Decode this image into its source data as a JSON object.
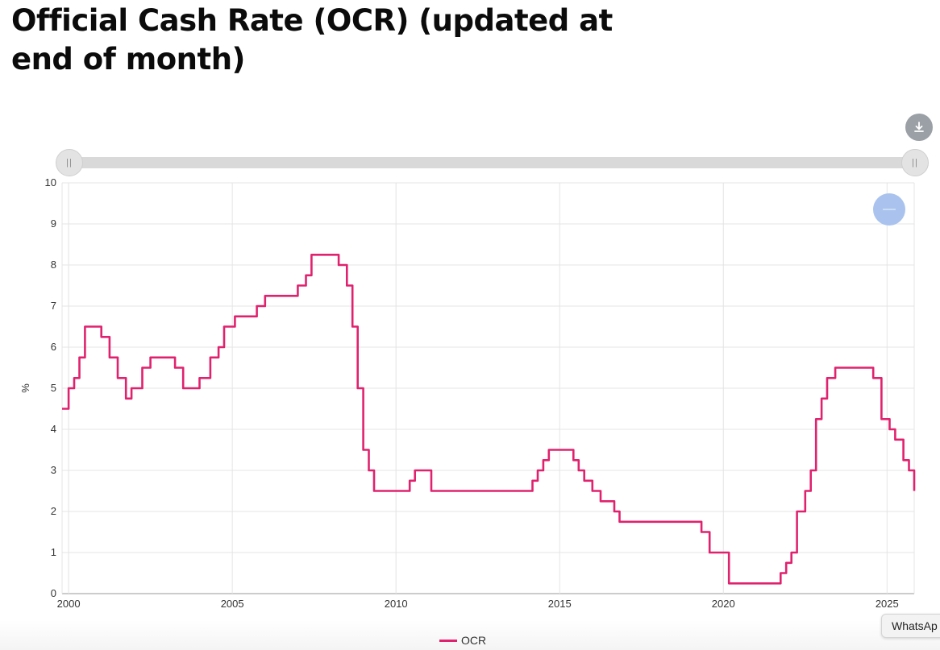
{
  "page": {
    "title": "Official Cash Rate (OCR) (updated at end of month)",
    "tooltip": "WhatsAp",
    "icons": {
      "download": "download-icon",
      "slider_handle": "grip-icon",
      "zoom": "minus-icon"
    },
    "colors": {
      "series": "#e0226e",
      "zoom_button": "#a9c3ee",
      "download_button": "#9aa0a5"
    }
  },
  "chart_data": {
    "type": "line",
    "title": "Official Cash Rate (OCR) (updated at end of month)",
    "xlabel": "",
    "ylabel": "%",
    "xlim": [
      1999.8,
      2025.83
    ],
    "ylim": [
      0,
      10
    ],
    "x_ticks": [
      "2000",
      "2005",
      "2010",
      "2015",
      "2020",
      "2025"
    ],
    "y_ticks": [
      "0",
      "1",
      "2",
      "3",
      "4",
      "5",
      "6",
      "7",
      "8",
      "9",
      "10"
    ],
    "grid": true,
    "legend_position": "bottom-center",
    "series": [
      {
        "name": "OCR",
        "step": true,
        "x": [
          1999.8,
          2000.0,
          2000.17,
          2000.33,
          2000.5,
          2001.0,
          2001.25,
          2001.5,
          2001.75,
          2001.92,
          2002.25,
          2002.5,
          2002.58,
          2003.25,
          2003.5,
          2003.67,
          2004.0,
          2004.33,
          2004.58,
          2004.75,
          2005.08,
          2005.75,
          2006.0,
          2007.0,
          2007.25,
          2007.42,
          2007.58,
          2008.25,
          2008.5,
          2008.67,
          2008.83,
          2009.0,
          2009.17,
          2009.33,
          2010.42,
          2010.58,
          2011.08,
          2014.17,
          2014.33,
          2014.5,
          2014.67,
          2015.42,
          2015.58,
          2015.75,
          2016.0,
          2016.25,
          2016.67,
          2016.83,
          2019.33,
          2019.58,
          2020.17,
          2021.75,
          2021.92,
          2022.08,
          2022.25,
          2022.5,
          2022.67,
          2022.83,
          2023.0,
          2023.17,
          2023.42,
          2024.58,
          2024.83,
          2025.08,
          2025.25,
          2025.5,
          2025.67,
          2025.83
        ],
        "values": [
          4.5,
          5.0,
          5.25,
          5.75,
          6.5,
          6.25,
          5.75,
          5.25,
          4.75,
          5.0,
          5.5,
          5.75,
          5.75,
          5.5,
          5.0,
          5.0,
          5.25,
          5.75,
          6.0,
          6.5,
          6.75,
          7.0,
          7.25,
          7.5,
          7.75,
          8.25,
          8.25,
          8.0,
          7.5,
          6.5,
          5.0,
          3.5,
          3.0,
          2.5,
          2.75,
          3.0,
          2.5,
          2.75,
          3.0,
          3.25,
          3.5,
          3.25,
          3.0,
          2.75,
          2.5,
          2.25,
          2.0,
          1.75,
          1.5,
          1.0,
          0.25,
          0.5,
          0.75,
          1.0,
          2.0,
          2.5,
          3.0,
          4.25,
          4.75,
          5.25,
          5.5,
          5.25,
          4.25,
          4.0,
          3.75,
          3.25,
          3.0,
          2.5
        ]
      }
    ]
  }
}
